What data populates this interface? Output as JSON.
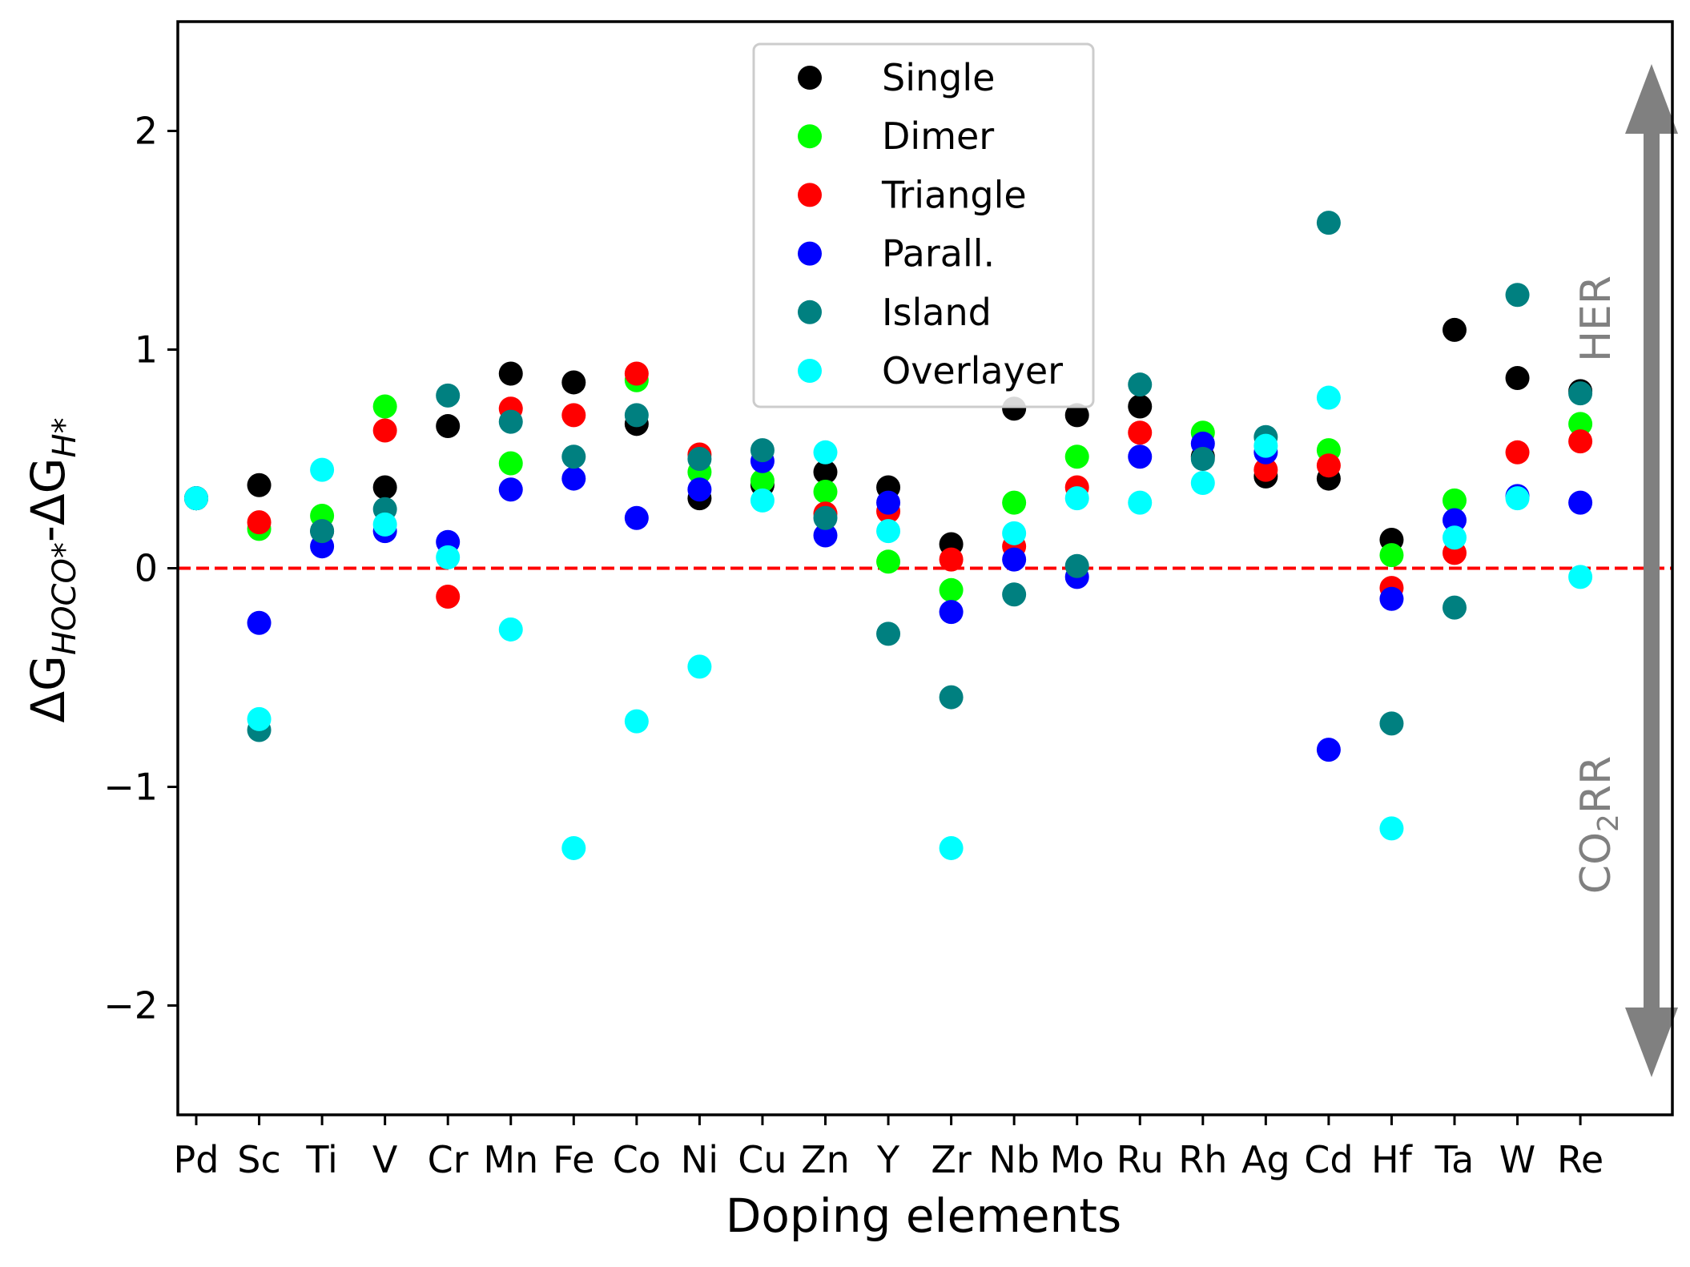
{
  "chart_data": {
    "type": "scatter",
    "title": "",
    "xlabel": "Doping elements",
    "ylabel": {
      "delta": "ΔG",
      "sub1": "HOCO*",
      "mid": "-ΔG",
      "sub2": "H*"
    },
    "categories": [
      "Pd",
      "Sc",
      "Ti",
      "V",
      "Cr",
      "Mn",
      "Fe",
      "Co",
      "Ni",
      "Cu",
      "Zn",
      "Y",
      "Zr",
      "Nb",
      "Mo",
      "Ru",
      "Rh",
      "Ag",
      "Cd",
      "Hf",
      "Ta",
      "W",
      "Re"
    ],
    "ylim": [
      -2.5,
      2.5
    ],
    "yticks": [
      {
        "value": -2,
        "label": "−2"
      },
      {
        "value": -1,
        "label": "−1"
      },
      {
        "value": 0,
        "label": "0"
      },
      {
        "value": 1,
        "label": "1"
      },
      {
        "value": 2,
        "label": "2"
      }
    ],
    "grid": false,
    "legend_position": "top-center",
    "reference_line": {
      "y": 0,
      "style": "dashed",
      "color": "#ff0000"
    },
    "series": [
      {
        "name": "Single",
        "color": "#000000",
        "values": [
          0.32,
          0.38,
          0.17,
          0.37,
          0.65,
          0.89,
          0.85,
          0.66,
          0.32,
          0.38,
          0.44,
          0.37,
          0.11,
          0.73,
          0.7,
          0.74,
          0.51,
          0.42,
          0.41,
          0.13,
          1.09,
          0.87,
          0.81
        ]
      },
      {
        "name": "Dimer",
        "color": "#00ff00",
        "values": [
          0.32,
          0.18,
          0.24,
          0.74,
          null,
          0.48,
          null,
          0.86,
          0.44,
          0.4,
          0.35,
          0.03,
          -0.1,
          0.3,
          0.51,
          null,
          0.62,
          null,
          0.54,
          0.06,
          0.31,
          null,
          0.66
        ]
      },
      {
        "name": "Triangle",
        "color": "#ff0000",
        "values": [
          0.32,
          0.21,
          null,
          0.63,
          -0.13,
          0.73,
          0.7,
          0.89,
          0.52,
          null,
          0.25,
          0.26,
          0.04,
          0.1,
          0.37,
          0.62,
          null,
          0.45,
          0.47,
          -0.09,
          0.07,
          0.53,
          0.58
        ]
      },
      {
        "name": "Parall.",
        "color": "#0000ff",
        "values": [
          0.32,
          -0.25,
          0.1,
          0.17,
          0.12,
          0.36,
          0.41,
          0.23,
          0.36,
          0.49,
          0.15,
          0.3,
          -0.2,
          0.04,
          -0.04,
          0.51,
          0.57,
          0.53,
          -0.83,
          -0.14,
          0.22,
          0.33,
          0.3
        ]
      },
      {
        "name": "Island",
        "color": "#008080",
        "values": [
          0.32,
          -0.74,
          0.17,
          0.27,
          0.79,
          0.67,
          0.51,
          0.7,
          0.5,
          0.54,
          0.23,
          -0.3,
          -0.59,
          -0.12,
          0.01,
          0.84,
          0.5,
          0.6,
          1.58,
          -0.71,
          -0.18,
          1.25,
          0.8
        ]
      },
      {
        "name": "Overlayer",
        "color": "#00ffff",
        "values": [
          0.32,
          -0.69,
          0.45,
          0.2,
          0.05,
          -0.28,
          -1.28,
          -0.7,
          -0.45,
          0.31,
          0.53,
          0.17,
          -1.28,
          0.16,
          0.32,
          0.3,
          0.39,
          0.56,
          0.78,
          -1.19,
          0.14,
          0.32,
          -0.04
        ]
      }
    ],
    "annotations": {
      "arrow_color": "#808080",
      "her_label": "HER",
      "co2rr_label": {
        "prefix": "CO",
        "sub": "2",
        "suffix": "RR"
      }
    }
  }
}
